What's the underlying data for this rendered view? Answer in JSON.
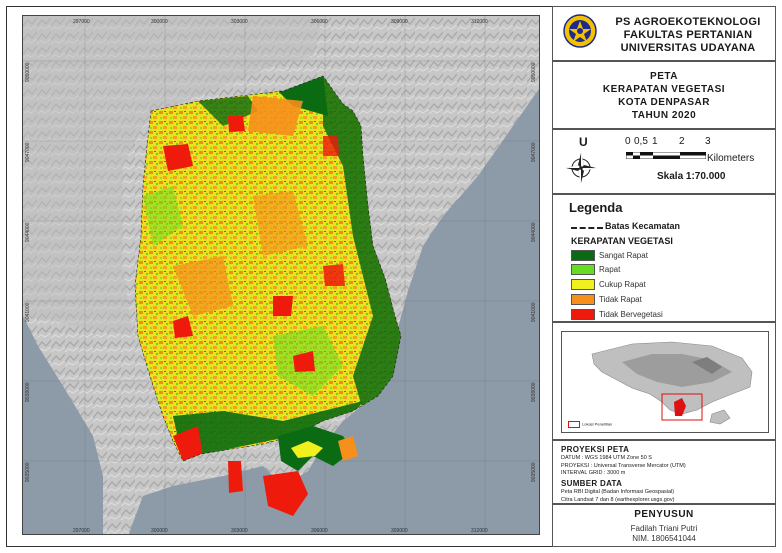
{
  "header": {
    "institution_lines": [
      "PS AGROEKOTEKNOLOGI",
      "FAKULTAS PERTANIAN",
      "UNIVERSITAS UDAYANA"
    ],
    "logo_text": "UNIVERSITAS UDAYANA"
  },
  "title_lines": [
    "PETA",
    "KERAPATAN VEGETASI",
    "KOTA DENPASAR",
    "TAHUN 2020"
  ],
  "north_label": "U",
  "scale": {
    "ticks": [
      "0",
      "0,5",
      "1",
      "2",
      "3"
    ],
    "unit": "Kilometers",
    "text": "Skala 1:70.000"
  },
  "legend": {
    "title": "Legenda",
    "boundary_label": "Batas Kecamatan",
    "subtitle": "KERAPATAN VEGETASI",
    "items": [
      {
        "label": "Sangat Rapat",
        "color": "#0b6b12"
      },
      {
        "label": "Rapat",
        "color": "#66dd22"
      },
      {
        "label": "Cukup Rapat",
        "color": "#f0f01c"
      },
      {
        "label": "Tidak Rapat",
        "color": "#f68f1c"
      },
      {
        "label": "Tidak Bervegetasi",
        "color": "#ee1a0c"
      }
    ]
  },
  "inset": {
    "legend_label": "Lokasi Penelitian",
    "highlight_color": "#dd1111"
  },
  "projection": {
    "heading": "PROYEKSI PETA",
    "lines": [
      "DATUM       : WGS 1984 UTM Zone 50 S",
      "PROYEKSI  : Universal Transverse Mercator (UTM)",
      "INTERVAL GRID : 3000 m"
    ]
  },
  "source": {
    "heading": "SUMBER DATA",
    "lines": [
      "Peta RBI Digital (Badan Informasi Geospasial)",
      "Citra Landsat 7 dan 8 (earthexplorer.usgs.gov)"
    ]
  },
  "author": {
    "heading": "PENYUSUN",
    "name": "Fadilah Triani Putri",
    "nim": "NIM. 1806541044"
  },
  "grid_labels": {
    "x": [
      "297000",
      "300000",
      "303000",
      "306000",
      "309000",
      "312000"
    ],
    "y": [
      "9050000",
      "9047000",
      "9044000",
      "9041000",
      "9038000",
      "9035000"
    ]
  },
  "colors": {
    "sea": "#8d9aa8",
    "land_hillshade": "#c4c4c4",
    "frame": "#333333"
  }
}
